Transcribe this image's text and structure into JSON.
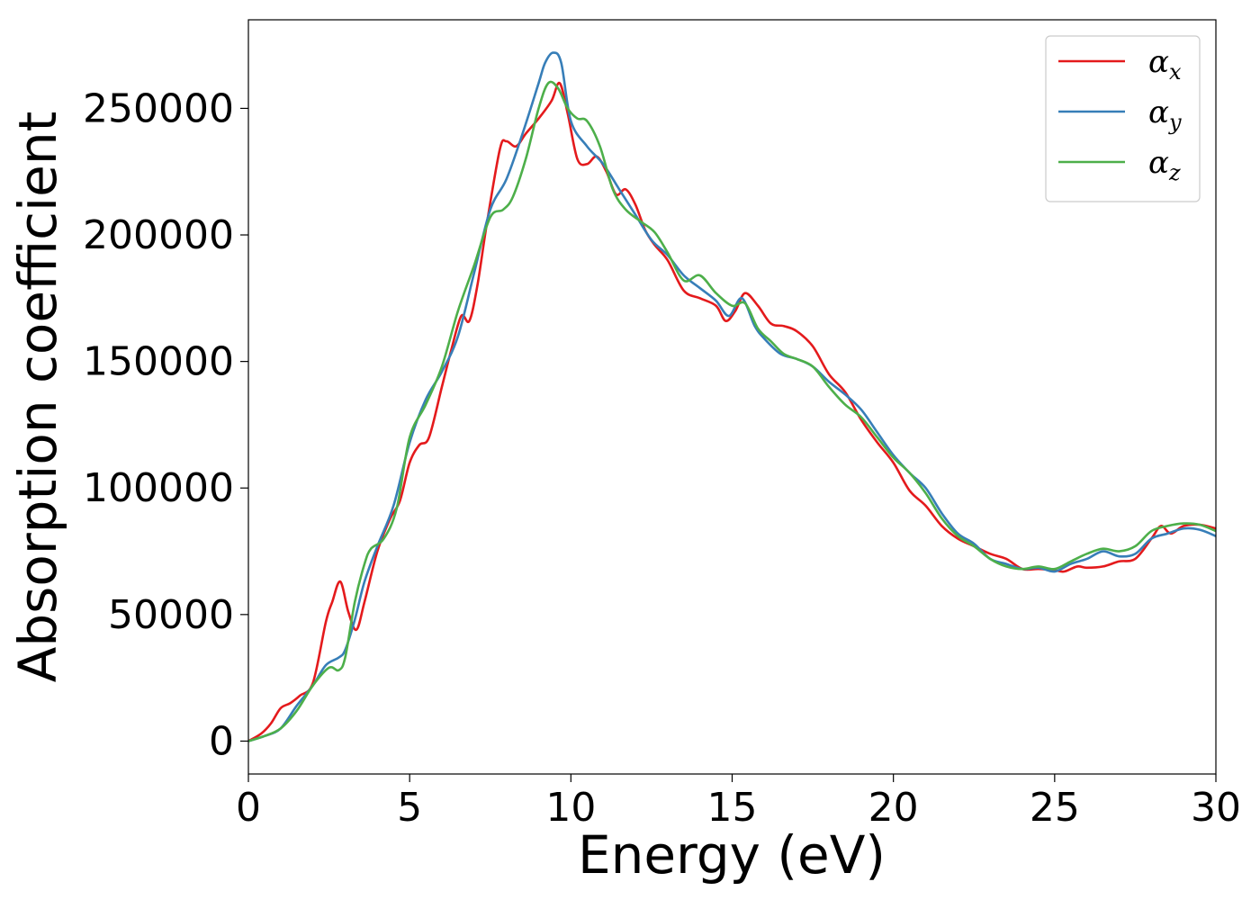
{
  "chart_data": {
    "type": "line",
    "title": "",
    "xlabel": "Energy (eV)",
    "ylabel": "Absorption coefficient",
    "xlim": [
      0,
      30
    ],
    "ylim": [
      -13000,
      285000
    ],
    "xticks": [
      0,
      5,
      10,
      15,
      20,
      25,
      30
    ],
    "yticks": [
      0,
      50000,
      100000,
      150000,
      200000,
      250000
    ],
    "grid": false,
    "legend_position": "top-right",
    "series": [
      {
        "name": "α",
        "subscript": "x",
        "color": "#e41a1c",
        "x": [
          0,
          0.4,
          0.7,
          1.0,
          1.3,
          1.6,
          2.0,
          2.4,
          2.6,
          2.85,
          3.1,
          3.35,
          3.6,
          4.0,
          4.4,
          4.7,
          5.0,
          5.3,
          5.6,
          6.0,
          6.3,
          6.6,
          6.85,
          7.1,
          7.4,
          7.8,
          8.0,
          8.3,
          8.6,
          9.0,
          9.4,
          9.65,
          9.9,
          10.2,
          10.5,
          10.8,
          11.1,
          11.4,
          11.7,
          12.0,
          12.3,
          12.6,
          13.0,
          13.5,
          14.0,
          14.5,
          14.8,
          15.1,
          15.4,
          15.8,
          16.2,
          16.6,
          17.0,
          17.5,
          18.0,
          18.5,
          19.0,
          19.5,
          20.0,
          20.5,
          21.0,
          21.5,
          22.0,
          22.5,
          23.0,
          23.5,
          24.0,
          24.5,
          25.0,
          25.3,
          25.7,
          26.0,
          26.5,
          27.0,
          27.5,
          28.0,
          28.3,
          28.6,
          29.0,
          29.5,
          30.0
        ],
        "values": [
          0,
          3000,
          7000,
          13000,
          15000,
          18000,
          23000,
          47000,
          55000,
          63000,
          51000,
          44000,
          55000,
          75000,
          88000,
          95000,
          110000,
          117000,
          120000,
          140000,
          155000,
          168000,
          166000,
          180000,
          205000,
          234000,
          237000,
          235000,
          240000,
          246000,
          253000,
          260000,
          248000,
          230000,
          228000,
          231000,
          225000,
          216000,
          218000,
          212000,
          202000,
          196000,
          190000,
          178000,
          175000,
          172000,
          166000,
          170000,
          177000,
          172000,
          165000,
          164000,
          162000,
          156000,
          145000,
          138000,
          127000,
          118000,
          110000,
          99000,
          93000,
          85000,
          80000,
          77000,
          74000,
          72000,
          68000,
          68000,
          67500,
          67000,
          69000,
          68500,
          69000,
          71000,
          72000,
          80000,
          85000,
          82000,
          85000,
          85500,
          84000
        ]
      },
      {
        "name": "α",
        "subscript": "y",
        "color": "#377eb8",
        "x": [
          0,
          0.5,
          1.0,
          1.5,
          2.0,
          2.4,
          2.8,
          3.0,
          3.3,
          3.6,
          4.0,
          4.5,
          5.0,
          5.5,
          6.0,
          6.5,
          7.0,
          7.5,
          8.0,
          8.5,
          9.0,
          9.2,
          9.45,
          9.7,
          10.0,
          10.5,
          11.0,
          11.5,
          12.0,
          12.5,
          13.0,
          13.5,
          14.0,
          14.5,
          14.9,
          15.3,
          15.7,
          16.0,
          16.5,
          17.0,
          17.5,
          18.0,
          18.5,
          19.0,
          19.5,
          20.0,
          20.5,
          21.0,
          21.5,
          22.0,
          22.5,
          23.0,
          23.5,
          24.0,
          24.5,
          25.0,
          25.5,
          26.0,
          26.5,
          27.0,
          27.5,
          28.0,
          28.5,
          29.0,
          29.5,
          30.0
        ],
        "values": [
          0,
          2000,
          5000,
          14000,
          22000,
          30000,
          33000,
          36000,
          48000,
          63000,
          77000,
          93000,
          118000,
          135000,
          146000,
          160000,
          185000,
          210000,
          222000,
          240000,
          260000,
          268000,
          272000,
          268000,
          245000,
          235000,
          228000,
          218000,
          208000,
          198000,
          192000,
          184000,
          179000,
          174000,
          168000,
          175000,
          164000,
          159000,
          153000,
          151000,
          148000,
          142000,
          137000,
          131000,
          122000,
          113000,
          106000,
          100000,
          90000,
          82000,
          78000,
          72000,
          70000,
          68000,
          68500,
          67000,
          70000,
          72000,
          75000,
          73000,
          74000,
          80000,
          82000,
          84000,
          83500,
          81000
        ]
      },
      {
        "name": "α",
        "subscript": "z",
        "color": "#4daf4a",
        "x": [
          0,
          0.5,
          1.0,
          1.5,
          2.0,
          2.5,
          2.8,
          3.0,
          3.3,
          3.6,
          3.8,
          4.2,
          4.6,
          5.0,
          5.5,
          6.0,
          6.5,
          7.0,
          7.5,
          7.9,
          8.2,
          8.6,
          9.0,
          9.3,
          9.6,
          9.9,
          10.2,
          10.5,
          10.9,
          11.3,
          11.7,
          12.2,
          12.6,
          13.0,
          13.5,
          14.0,
          14.5,
          15.0,
          15.4,
          15.8,
          16.2,
          16.6,
          17.0,
          17.5,
          18.0,
          18.5,
          19.0,
          19.5,
          20.0,
          20.5,
          21.0,
          21.5,
          22.0,
          22.5,
          23.0,
          23.5,
          24.0,
          24.5,
          25.0,
          25.5,
          26.0,
          26.5,
          27.0,
          27.5,
          28.0,
          28.5,
          29.0,
          29.5,
          30.0
        ],
        "values": [
          0,
          2000,
          5000,
          12000,
          22000,
          29000,
          28000,
          33000,
          55000,
          70000,
          76000,
          80000,
          92000,
          120000,
          133000,
          148000,
          170000,
          188000,
          207000,
          210000,
          215000,
          230000,
          250000,
          260000,
          258000,
          250000,
          246000,
          245000,
          235000,
          218000,
          210000,
          205000,
          201000,
          193000,
          182000,
          184000,
          177000,
          172000,
          173000,
          163000,
          158000,
          153000,
          151000,
          148000,
          140000,
          133000,
          128000,
          120000,
          112000,
          106000,
          98000,
          88000,
          81000,
          77000,
          72000,
          69000,
          68000,
          69000,
          68000,
          71000,
          74000,
          76000,
          75000,
          77000,
          83000,
          85000,
          86000,
          85500,
          83000
        ]
      }
    ]
  }
}
